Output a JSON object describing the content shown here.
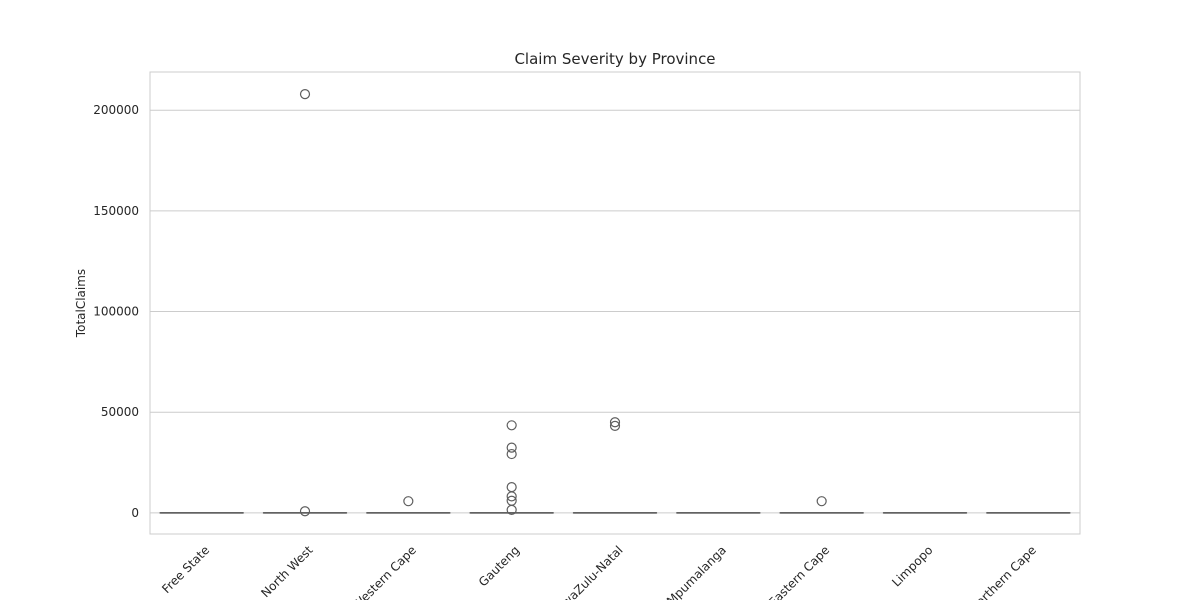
{
  "chart_data": {
    "type": "box",
    "title": "Claim Severity by Province",
    "xlabel": "",
    "ylabel": "TotalClaims",
    "ylim": [
      -10500,
      219000
    ],
    "yticks": [
      0,
      50000,
      100000,
      150000,
      200000
    ],
    "grid": "horizontal",
    "categories": [
      "Free State",
      "North West",
      "Western Cape",
      "Gauteng",
      "KwaZulu-Natal",
      "Mpumalanga",
      "Eastern Cape",
      "Limpopo",
      "Northern Cape"
    ],
    "boxes": [
      {
        "category": "Free State",
        "q1": 0,
        "median": 0,
        "q3": 0,
        "whisker_low": 0,
        "whisker_high": 0,
        "outliers": []
      },
      {
        "category": "North West",
        "q1": 0,
        "median": 0,
        "q3": 0,
        "whisker_low": 0,
        "whisker_high": 0,
        "outliers": [
          208000,
          800
        ]
      },
      {
        "category": "Western Cape",
        "q1": 0,
        "median": 0,
        "q3": 0,
        "whisker_low": 0,
        "whisker_high": 0,
        "outliers": [
          5800
        ]
      },
      {
        "category": "Gauteng",
        "q1": 0,
        "median": 0,
        "q3": 0,
        "whisker_low": 0,
        "whisker_high": 0,
        "outliers": [
          43500,
          32400,
          29200,
          12800,
          8200,
          6000,
          1500
        ]
      },
      {
        "category": "KwaZulu-Natal",
        "q1": 0,
        "median": 0,
        "q3": 0,
        "whisker_low": 0,
        "whisker_high": 0,
        "outliers": [
          45000,
          43200
        ]
      },
      {
        "category": "Mpumalanga",
        "q1": 0,
        "median": 0,
        "q3": 0,
        "whisker_low": 0,
        "whisker_high": 0,
        "outliers": []
      },
      {
        "category": "Eastern Cape",
        "q1": 0,
        "median": 0,
        "q3": 0,
        "whisker_low": 0,
        "whisker_high": 0,
        "outliers": [
          5800
        ]
      },
      {
        "category": "Limpopo",
        "q1": 0,
        "median": 0,
        "q3": 0,
        "whisker_low": 0,
        "whisker_high": 0,
        "outliers": []
      },
      {
        "category": "Northern Cape",
        "q1": 0,
        "median": 0,
        "q3": 0,
        "whisker_low": 0,
        "whisker_high": 0,
        "outliers": []
      }
    ],
    "colors": {
      "box_fill": "#7c9fca",
      "box_edge": "#5e5e5e",
      "grid": "#cccccc",
      "axes_edge": "#cccccc",
      "text": "#262626"
    }
  }
}
